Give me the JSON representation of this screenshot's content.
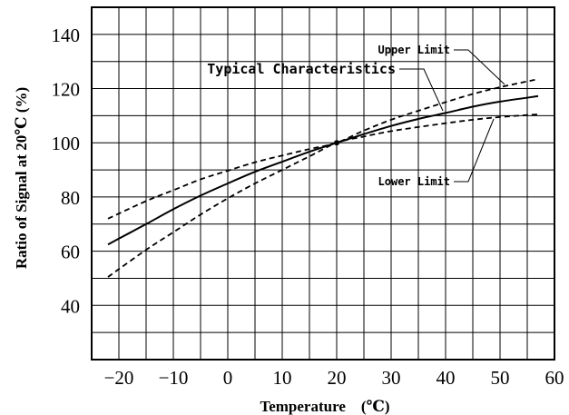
{
  "chart_data": {
    "type": "line",
    "xlabel": "Temperature　(℃)",
    "ylabel": "Ratio of Signal at 20℃ (%)",
    "xlim": [
      -25,
      60
    ],
    "ylim": [
      20,
      150
    ],
    "x_ticks": [
      -20,
      -10,
      0,
      10,
      20,
      30,
      40,
      50,
      60
    ],
    "y_ticks": [
      40,
      60,
      80,
      100,
      120,
      140
    ],
    "grid": true,
    "series": [
      {
        "name": "Typical Characteristics",
        "style": "solid",
        "x": [
          -22,
          -15,
          -10,
          -5,
          0,
          5,
          10,
          15,
          20,
          25,
          30,
          35,
          40,
          45,
          50,
          57
        ],
        "y": [
          62.5,
          70,
          75.5,
          80.5,
          85,
          89.3,
          93,
          96.7,
          100,
          103.2,
          106.2,
          108.8,
          111,
          113.3,
          115.2,
          117.2
        ]
      },
      {
        "name": "Upper Limit",
        "style": "dashed",
        "x": [
          -22,
          -15,
          -10,
          -5,
          0,
          5,
          10,
          15,
          20,
          25,
          30,
          35,
          40,
          45,
          50,
          57
        ],
        "y": [
          72,
          78.5,
          82.5,
          86.5,
          89.7,
          92.8,
          95.3,
          97.7,
          100,
          104.5,
          108.5,
          111.8,
          115,
          118,
          120.5,
          123.5
        ]
      },
      {
        "name": "Lower Limit",
        "style": "dashed",
        "x": [
          -22,
          -15,
          -10,
          -5,
          0,
          5,
          10,
          15,
          20,
          25,
          30,
          35,
          40,
          45,
          50,
          57
        ],
        "y": [
          50.5,
          60.5,
          67,
          73.5,
          79.5,
          85,
          90,
          95,
          100,
          102.3,
          104.3,
          105.8,
          107.2,
          108.5,
          109.5,
          110.5
        ]
      }
    ],
    "annotations": [
      {
        "text": "Upper Limit",
        "series": "Upper Limit"
      },
      {
        "text": "Typical Characteristics",
        "series": "Typical Characteristics"
      },
      {
        "text": "Lower Limit",
        "series": "Lower Limit"
      }
    ],
    "colors": {
      "lines": "#000000",
      "grid": "#000000",
      "background": "#ffffff"
    }
  }
}
